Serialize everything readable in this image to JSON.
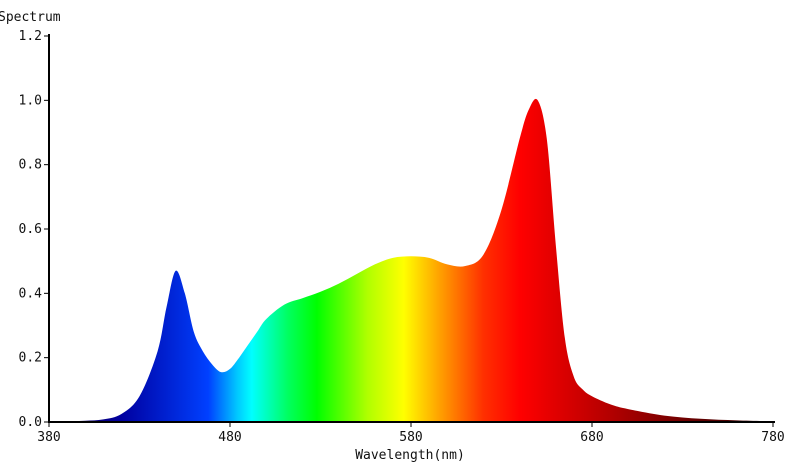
{
  "chart_data": {
    "type": "area",
    "title": "Spectrum",
    "xlabel": "Wavelength(nm)",
    "ylabel": "",
    "xlim": [
      380,
      780
    ],
    "ylim": [
      0,
      1.2
    ],
    "x_ticks": [
      380,
      480,
      580,
      680,
      780
    ],
    "y_ticks": [
      "0.0",
      "0.2",
      "0.4",
      "0.6",
      "0.8",
      "1.0",
      "1.2"
    ],
    "grid": false,
    "fill": "visible-spectrum gradient",
    "series": [
      {
        "x": [
          380,
          390,
          400,
          410,
          420,
          430,
          440,
          445,
          450,
          455,
          460,
          465,
          470,
          475,
          480,
          485,
          490,
          495,
          500,
          510,
          520,
          530,
          540,
          550,
          560,
          570,
          580,
          590,
          600,
          610,
          620,
          630,
          640,
          645,
          650,
          655,
          660,
          665,
          670,
          675,
          680,
          690,
          700,
          720,
          740,
          760,
          780
        ],
        "y": [
          0.0,
          0.002,
          0.004,
          0.008,
          0.025,
          0.08,
          0.22,
          0.36,
          0.47,
          0.4,
          0.28,
          0.22,
          0.18,
          0.155,
          0.165,
          0.2,
          0.24,
          0.28,
          0.32,
          0.365,
          0.385,
          0.405,
          0.43,
          0.46,
          0.49,
          0.51,
          0.515,
          0.51,
          0.49,
          0.485,
          0.52,
          0.66,
          0.88,
          0.97,
          1.0,
          0.88,
          0.55,
          0.26,
          0.14,
          0.1,
          0.08,
          0.055,
          0.04,
          0.02,
          0.01,
          0.005,
          0.002
        ]
      }
    ]
  }
}
